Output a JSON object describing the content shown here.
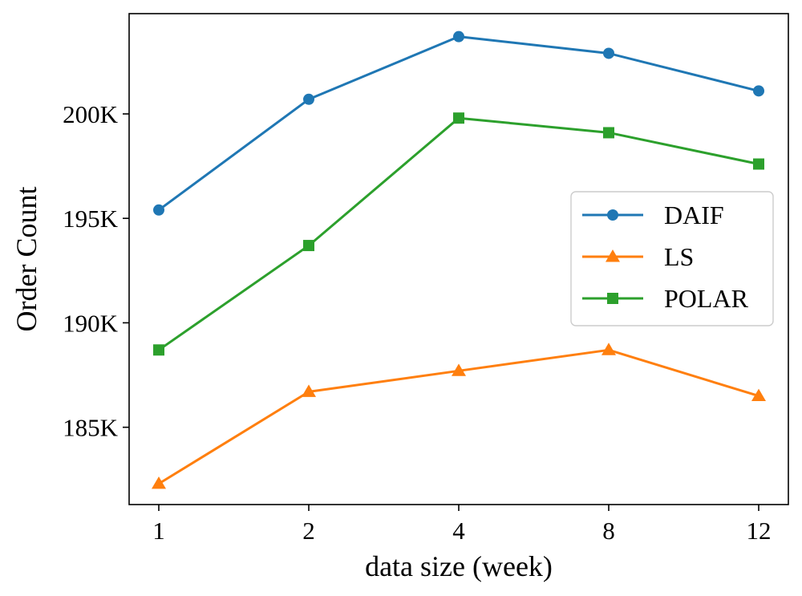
{
  "chart_data": {
    "type": "line",
    "title": "",
    "xlabel": "data size (week)",
    "ylabel": "Order Count",
    "categories": [
      "1",
      "2",
      "4",
      "8",
      "12"
    ],
    "ylim": [
      181300,
      204800
    ],
    "yticks": [
      185000,
      190000,
      195000,
      200000
    ],
    "ytick_labels": [
      "185K",
      "190K",
      "195K",
      "200K"
    ],
    "grid": false,
    "legend_position": "center-right",
    "series": [
      {
        "name": "DAIF",
        "marker": "circle",
        "color": "#1f77b4",
        "values": [
          195400,
          200700,
          203700,
          202900,
          201100
        ]
      },
      {
        "name": "LS",
        "marker": "triangle",
        "color": "#ff7f0e",
        "values": [
          182300,
          186700,
          187700,
          188700,
          186500
        ]
      },
      {
        "name": "POLAR",
        "marker": "square",
        "color": "#2ca02c",
        "values": [
          188700,
          193700,
          199800,
          199100,
          197600
        ]
      }
    ]
  }
}
